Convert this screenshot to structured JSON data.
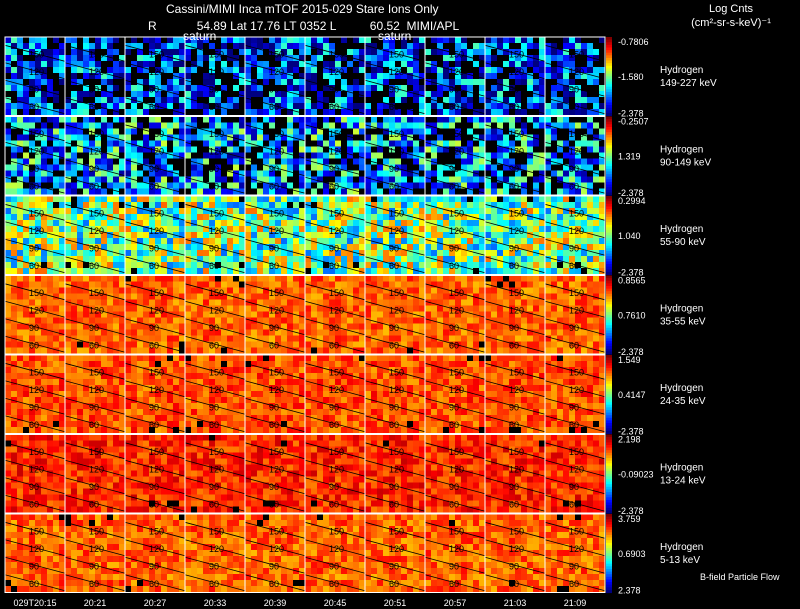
{
  "header": {
    "title": "Cassini/MIMI Inca mTOF  2015-029    Stare    Ions Only",
    "r_label": "R",
    "r_value": "54.89",
    "lat_label": "Lat",
    "lat_value": "17.76",
    "lt_label": "LT",
    "lt_value": "0352",
    "l_label": "L",
    "l_value": "60.52",
    "org": "MIMI/APL",
    "saturn_label": "saturn"
  },
  "colorbar_title_line1": "Log Cnts",
  "colorbar_title_line2": "(cm²-sr-s-keV)⁻¹",
  "footer_label": "B-field  Particle Flow",
  "chart_data": {
    "type": "heatmap",
    "title": "Cassini/MIMI Inca mTOF  2015-029    Stare    Ions Only",
    "x_tick_labels": [
      "029T20:15",
      "20:21",
      "20:27",
      "20:33",
      "20:39",
      "20:45",
      "20:51",
      "20:57",
      "21:03",
      "21:09"
    ],
    "contour_labels": [
      "150",
      "120",
      "90",
      "60"
    ],
    "rows": [
      {
        "species": "Hydrogen",
        "energy": "149-227 keV",
        "cb_max": "-0.7806",
        "cb_mid": "-1.580",
        "cb_min": "-2.378",
        "level": 0.18
      },
      {
        "species": "Hydrogen",
        "energy": "90-149 keV",
        "cb_max": "-0.2507",
        "cb_mid": "1.319",
        "cb_min": "-2.378",
        "level": 0.3
      },
      {
        "species": "Hydrogen",
        "energy": "55-90 keV",
        "cb_max": "0.2994",
        "cb_mid": "1.040",
        "cb_min": "-2.378",
        "level": 0.5
      },
      {
        "species": "Hydrogen",
        "energy": "35-55 keV",
        "cb_max": "0.8565",
        "cb_mid": "0.7610",
        "cb_min": "-2.378",
        "level": 0.78
      },
      {
        "species": "Hydrogen",
        "energy": "24-35 keV",
        "cb_max": "1.549",
        "cb_mid": "0.4147",
        "cb_min": "-2.378",
        "level": 0.8
      },
      {
        "species": "Hydrogen",
        "energy": "13-24 keV",
        "cb_max": "2.198",
        "cb_mid": "-0.09023",
        "cb_min": "-2.378",
        "level": 0.84
      },
      {
        "species": "Hydrogen",
        "energy": "5-13 keV",
        "cb_max": "3.759",
        "cb_mid": "0.6903",
        "cb_min": "2.378",
        "level": 0.78
      }
    ]
  }
}
